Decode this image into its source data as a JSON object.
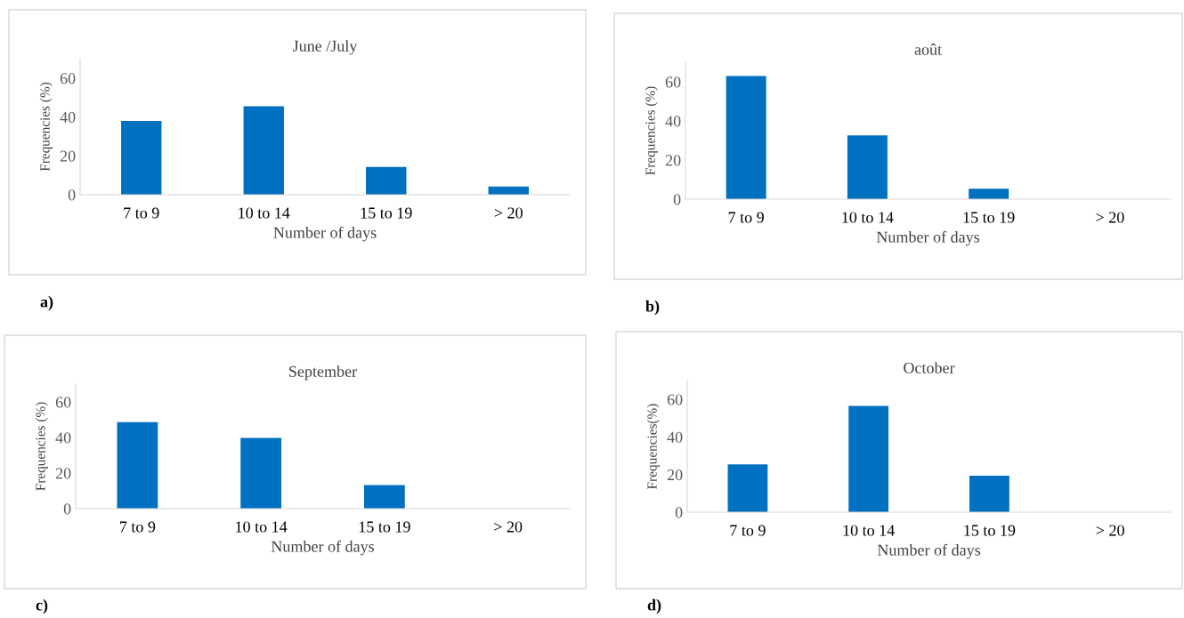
{
  "chart_data": [
    {
      "type": "bar",
      "title": "June /July",
      "xlabel": "Number of days",
      "ylabel": "Frequencies (%)",
      "categories": [
        "7 to 9",
        "10 to 14",
        "15 to 19",
        "> 20"
      ],
      "values": [
        38,
        45.5,
        14.3,
        4.2
      ],
      "color": "#0070c0",
      "ylim": [
        0,
        70
      ],
      "yticks": [
        0,
        20,
        40,
        60
      ],
      "grid": false,
      "annotations": [
        "a)"
      ]
    },
    {
      "type": "bar",
      "title": "août",
      "xlabel": "Number of days",
      "ylabel": "Frequencies (%)",
      "categories": [
        "7 to 9",
        "10 to 14",
        "15 to 19",
        "> 20"
      ],
      "values": [
        63,
        32.6,
        5.3,
        0
      ],
      "color": "#0070c0",
      "ylim": [
        0,
        70
      ],
      "yticks": [
        0,
        20,
        40,
        60
      ],
      "grid": false,
      "annotations": [
        "b)"
      ]
    },
    {
      "type": "bar",
      "title": "September",
      "xlabel": "Number of days",
      "ylabel": "Frequencies (%)",
      "categories": [
        "7 to 9",
        "10 to 14",
        "15 to 19",
        "> 20"
      ],
      "values": [
        48.6,
        39.8,
        13.3,
        0
      ],
      "color": "#0070c0",
      "ylim": [
        0,
        70
      ],
      "yticks": [
        0,
        20,
        40,
        60
      ],
      "grid": false,
      "annotations": [
        "c)"
      ]
    },
    {
      "type": "bar",
      "title": "October",
      "xlabel": "Number of days",
      "ylabel": "Frequencies(%)",
      "categories": [
        "7 to 9",
        "10 to 14",
        "15 to 19",
        "> 20"
      ],
      "values": [
        25.4,
        56.5,
        19.4,
        0
      ],
      "color": "#0070c0",
      "ylim": [
        0,
        70
      ],
      "yticks": [
        0,
        20,
        40,
        60
      ],
      "grid": false,
      "annotations": [
        "d)"
      ]
    }
  ]
}
